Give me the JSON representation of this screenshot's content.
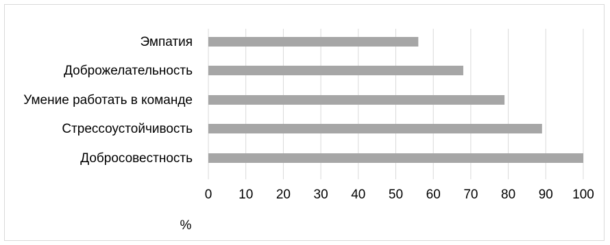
{
  "chart_data": {
    "type": "bar",
    "orientation": "horizontal",
    "categories": [
      "Эмпатия",
      "Доброжелательность",
      "Умение работать в команде",
      "Стрессоустойчивость",
      "Добросовестность"
    ],
    "values": [
      56,
      68,
      79,
      89,
      100
    ],
    "xlabel": "%",
    "ylabel": "",
    "xlim": [
      0,
      100
    ],
    "xticks": [
      "0",
      "10",
      "20",
      "30",
      "40",
      "50",
      "60",
      "70",
      "80",
      "90",
      "100"
    ],
    "grid": "vertical",
    "legend": "none",
    "bar_color": "#a6a6a6",
    "grid_color": "#d9d9d9"
  }
}
